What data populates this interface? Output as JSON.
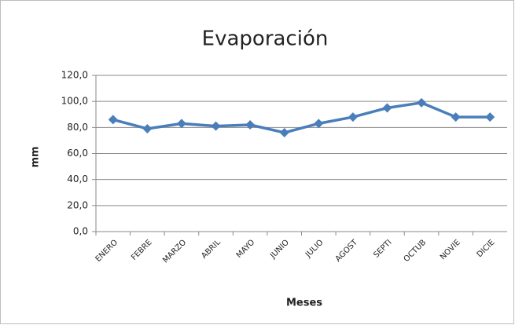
{
  "chart_data": {
    "type": "line",
    "title": "Evaporación",
    "x_label": "Meses",
    "y_label": "mm",
    "categories": [
      "ENERO",
      "FEBRE",
      "MARZO",
      "ABRIL",
      "MAYO",
      "JUNIO",
      "JULIO",
      "AGOST",
      "SEPTI",
      "OCTUB",
      "NOVIE",
      "DICIE"
    ],
    "series": [
      {
        "name": "Evaporación",
        "color": "#4a7ebb",
        "values": [
          86,
          79,
          83,
          81,
          82,
          76,
          83,
          88,
          95,
          99,
          88,
          88
        ]
      }
    ],
    "ylim": [
      0,
      120
    ],
    "yticks": [
      {
        "value": 0,
        "label": "0,0"
      },
      {
        "value": 20,
        "label": "20,0"
      },
      {
        "value": 40,
        "label": "40,0"
      },
      {
        "value": 60,
        "label": "60,0"
      },
      {
        "value": 80,
        "label": "80,0"
      },
      {
        "value": 100,
        "label": "100,0"
      },
      {
        "value": 120,
        "label": "120,0"
      }
    ],
    "grid": true
  }
}
